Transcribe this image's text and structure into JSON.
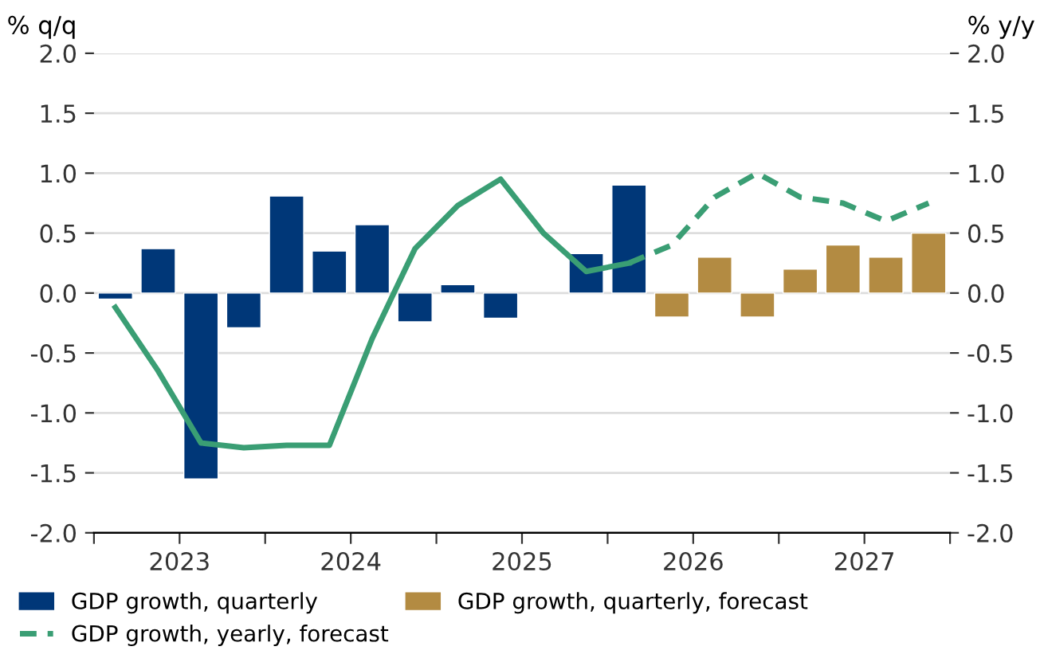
{
  "chart_data": {
    "type": "bar",
    "ylabel": "% q/q",
    "y2label": "% y/y",
    "x": [
      2023.0,
      2023.25,
      2023.5,
      2023.75,
      2024.0,
      2024.25,
      2024.5,
      2024.75,
      2025.0,
      2025.25,
      2025.5,
      2025.75,
      2026.0,
      2026.25,
      2026.5,
      2026.75,
      2027.0,
      2027.25,
      2027.5,
      2027.75
    ],
    "xlim": [
      2022.875,
      2027.875
    ],
    "xticks": [
      {
        "value": 2022.875,
        "label": null
      },
      {
        "value": 2023.375,
        "label": "2023"
      },
      {
        "value": 2023.875,
        "label": null
      },
      {
        "value": 2024.375,
        "label": "2024"
      },
      {
        "value": 2024.875,
        "label": null
      },
      {
        "value": 2025.375,
        "label": "2025"
      },
      {
        "value": 2025.875,
        "label": null
      },
      {
        "value": 2026.375,
        "label": "2026"
      },
      {
        "value": 2026.875,
        "label": null
      },
      {
        "value": 2027.375,
        "label": "2027"
      },
      {
        "value": 2027.875,
        "label": null
      }
    ],
    "ylim": [
      -2.0,
      2.0
    ],
    "yticks": [
      {
        "value": -2,
        "label": "-2.0"
      },
      {
        "value": -1.5,
        "label": "-1.5"
      },
      {
        "value": -1,
        "label": "-1.0"
      },
      {
        "value": -0.5,
        "label": "-0.5"
      },
      {
        "value": 0,
        "label": "0.0"
      },
      {
        "value": 0.5,
        "label": "0.5"
      },
      {
        "value": 1,
        "label": "1.0"
      },
      {
        "value": 1.5,
        "label": "1.5"
      },
      {
        "value": 2,
        "label": "2.0"
      }
    ],
    "y2lim": [
      -2.0,
      2.0
    ],
    "y2ticks": [
      {
        "value": -2,
        "label": "-2.0"
      },
      {
        "value": -1.5,
        "label": "-1.5"
      },
      {
        "value": -1,
        "label": "-1.0"
      },
      {
        "value": -0.5,
        "label": "-0.5"
      },
      {
        "value": 0,
        "label": "0.0"
      },
      {
        "value": 0.5,
        "label": "0.5"
      },
      {
        "value": 1,
        "label": "1.0"
      },
      {
        "value": 1.5,
        "label": "1.5"
      },
      {
        "value": 2,
        "label": "2.0"
      }
    ],
    "grid": "y",
    "legend": "bottom",
    "series": [
      {
        "name": "GDP growth, quarterly",
        "color": "#003778",
        "values": [
          -0.05,
          0.37,
          -1.55,
          -0.29,
          0.81,
          0.35,
          0.57,
          -0.24,
          0.07,
          -0.21,
          null,
          0.33,
          0.9,
          null,
          null,
          null,
          null,
          null,
          null,
          null
        ]
      },
      {
        "name": "GDP growth, quarterly, forecast",
        "color": "#b38b42",
        "values": [
          null,
          null,
          null,
          null,
          null,
          null,
          null,
          null,
          null,
          null,
          null,
          null,
          null,
          -0.2,
          0.3,
          -0.2,
          0.2,
          0.4,
          0.3,
          0.5
        ]
      },
      {
        "type": "line",
        "color": "#3a9e74",
        "line_style": "solid",
        "values": [
          -0.12,
          -0.65,
          -1.25,
          -1.29,
          -1.27,
          -1.27,
          -0.38,
          0.37,
          0.73,
          0.95,
          0.5,
          0.18,
          0.25,
          null,
          null,
          null,
          null,
          null,
          null,
          null
        ]
      },
      {
        "name": "GDP growth, yearly, forecast",
        "type": "line",
        "color": "#3a9e74",
        "line_style": "dashed",
        "values": [
          null,
          null,
          null,
          null,
          null,
          null,
          null,
          null,
          null,
          null,
          null,
          null,
          0.25,
          0.4,
          0.8,
          1.0,
          0.8,
          0.75,
          0.6,
          0.75
        ]
      }
    ]
  }
}
